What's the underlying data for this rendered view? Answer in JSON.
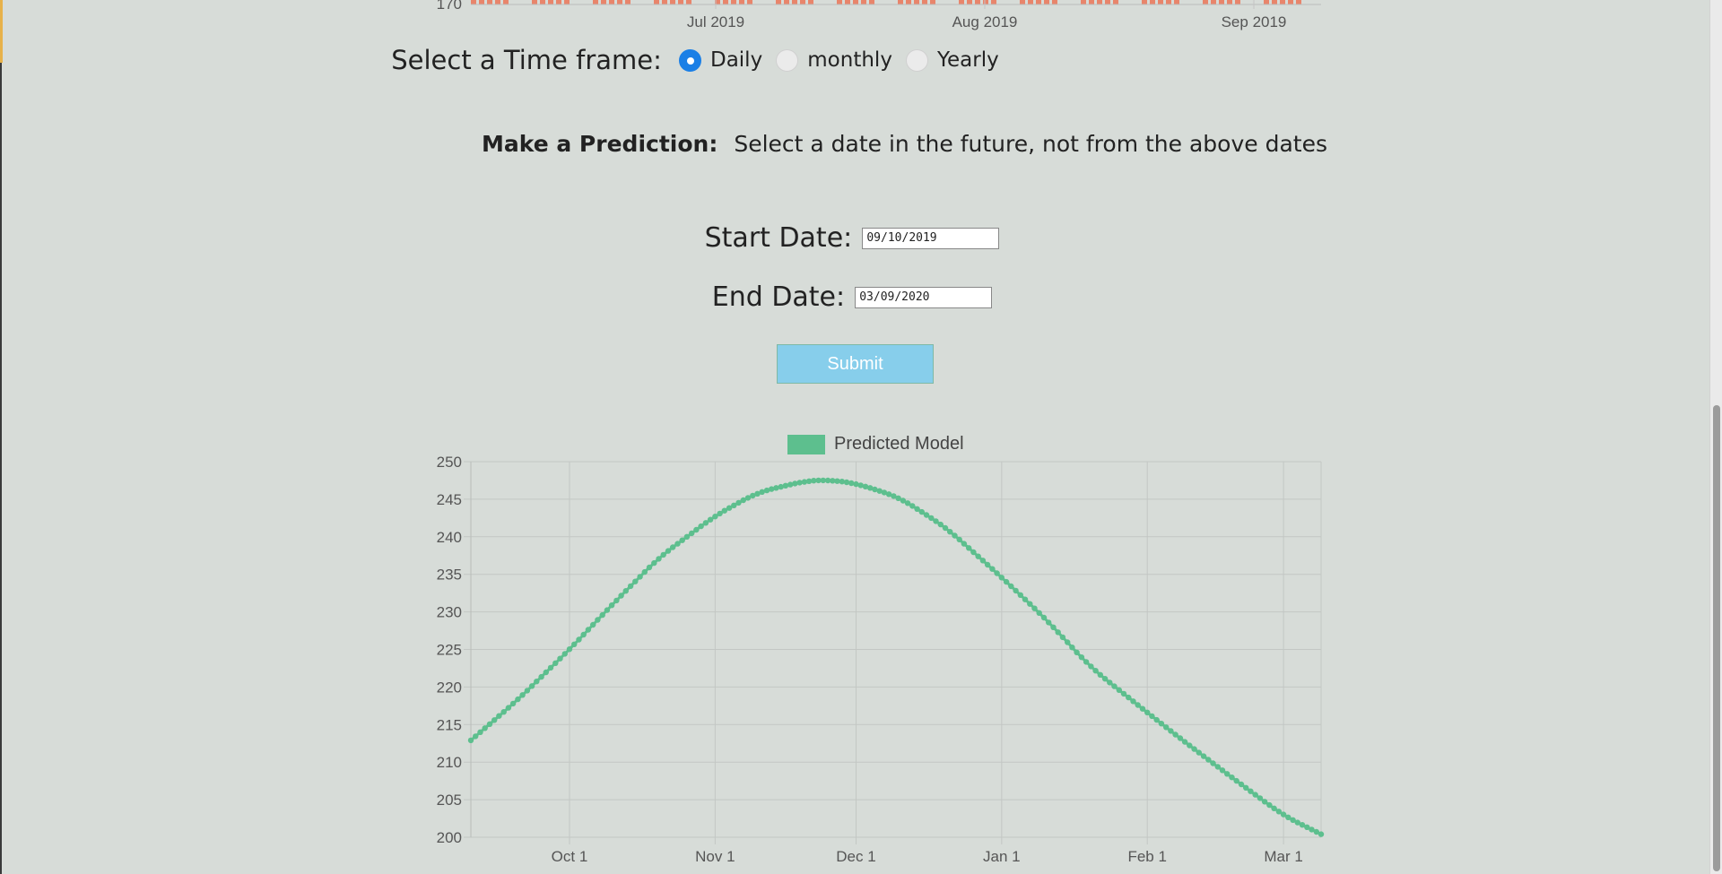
{
  "top_chart": {
    "visible_y_tick": "170",
    "x_ticks": [
      "Jul 2019",
      "Aug 2019",
      "Sep 2019"
    ],
    "bar_color": "#e8856b"
  },
  "timeframe": {
    "label": "Select a Time frame:",
    "options": [
      "Daily",
      "monthly",
      "Yearly"
    ],
    "selected": "Daily"
  },
  "prediction": {
    "bold_label": "Make a Prediction:",
    "instruction": "Select a date in the future, not from the above dates"
  },
  "start_date": {
    "label": "Start Date:",
    "value": "09/10/2019"
  },
  "end_date": {
    "label": "End Date:",
    "value": "03/09/2020"
  },
  "submit": {
    "label": "Submit"
  },
  "legend": {
    "label": "Predicted Model",
    "color": "#5dbf8e"
  },
  "chart_data": {
    "type": "line",
    "x_start": "2019-09-10",
    "x_end": "2020-03-09",
    "x_tick_labels": [
      "Oct 1",
      "Nov 1",
      "Dec 1",
      "Jan 1",
      "Feb 1",
      "Mar 1"
    ],
    "y_tick_labels": [
      "250",
      "245",
      "240",
      "235",
      "230",
      "225",
      "220",
      "215",
      "210",
      "205",
      "200"
    ],
    "ylim": [
      200,
      250
    ],
    "grid": true,
    "legend_position": "top-center",
    "series": [
      {
        "name": "Predicted Model",
        "color": "#5dbf8e",
        "points": [
          [
            "2019-09-10",
            212.9
          ],
          [
            "2019-09-20",
            218.3
          ],
          [
            "2019-10-01",
            225.0
          ],
          [
            "2019-10-10",
            230.9
          ],
          [
            "2019-10-20",
            237.2
          ],
          [
            "2019-11-01",
            242.8
          ],
          [
            "2019-11-10",
            245.9
          ],
          [
            "2019-11-20",
            247.4
          ],
          [
            "2019-11-25",
            247.6
          ],
          [
            "2019-12-01",
            247.1
          ],
          [
            "2019-12-10",
            245.3
          ],
          [
            "2019-12-20",
            241.3
          ],
          [
            "2020-01-01",
            234.6
          ],
          [
            "2020-01-10",
            229.3
          ],
          [
            "2020-01-20",
            222.6
          ],
          [
            "2020-02-01",
            216.6
          ],
          [
            "2020-02-10",
            212.2
          ],
          [
            "2020-02-20",
            207.5
          ],
          [
            "2020-03-01",
            202.9
          ],
          [
            "2020-03-09",
            200.4
          ]
        ]
      }
    ]
  }
}
